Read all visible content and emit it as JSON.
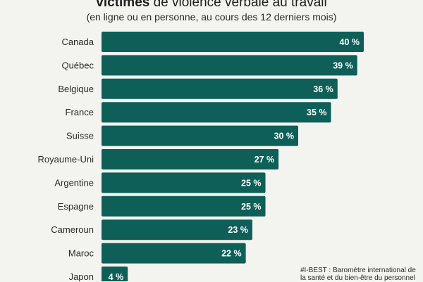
{
  "title": {
    "bold": "victimes",
    "rest": " de violence verbale au travail"
  },
  "subtitle": "(en ligne ou en personne, au cours des 12 derniers mois)",
  "note": "#I-BEST : Baromètre international de la santé et du bien-être du personnel",
  "colors": {
    "bar": "#0d5f58",
    "background": "#f3f3ef"
  },
  "chart_data": {
    "type": "bar",
    "orientation": "horizontal",
    "categories": [
      "Canada",
      "Québec",
      "Belgique",
      "France",
      "Suisse",
      "Royaume-Uni",
      "Argentine",
      "Espagne",
      "Cameroun",
      "Maroc",
      "Japon"
    ],
    "values": [
      40,
      39,
      36,
      35,
      30,
      27,
      25,
      25,
      23,
      22,
      4
    ],
    "value_labels": [
      "40 %",
      "39 %",
      "36 %",
      "35 %",
      "30 %",
      "27 %",
      "25 %",
      "25 %",
      "23 %",
      "22 %",
      "4 %"
    ],
    "unit": "%",
    "xlim": [
      0,
      40
    ],
    "grid": false,
    "legend": "none"
  }
}
